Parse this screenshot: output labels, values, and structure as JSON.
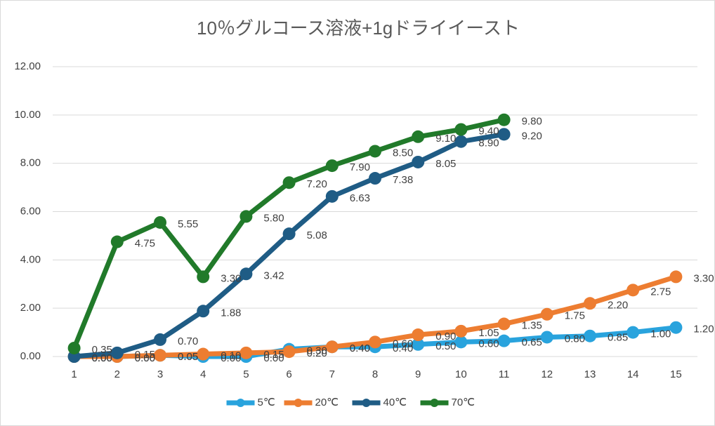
{
  "chart_data": {
    "type": "line",
    "title": "10％グルコース溶液+1gドライイースト",
    "categories": [
      "1",
      "2",
      "3",
      "4",
      "5",
      "6",
      "7",
      "8",
      "9",
      "10",
      "11",
      "12",
      "13",
      "14",
      "15"
    ],
    "series": [
      {
        "name": "5℃",
        "color": "#29a3dd",
        "values": [
          0,
          0,
          0.05,
          0,
          0,
          0.3,
          0.4,
          0.4,
          0.5,
          0.6,
          0.65,
          0.8,
          0.85,
          1,
          1.2
        ],
        "value_labels": [
          "0.00",
          "0.00",
          "0.05",
          "0.00",
          "0.00",
          "0.30",
          "0.40",
          "0.40",
          "0.50",
          "0.60",
          "0.65",
          "0.80",
          "0.85",
          "1.00",
          "1.20"
        ]
      },
      {
        "name": "20℃",
        "color": "#ed7d31",
        "values": [
          0,
          0,
          0.05,
          0.1,
          0.15,
          0.2,
          0.4,
          0.6,
          0.9,
          1.05,
          1.35,
          1.75,
          2.2,
          2.75,
          3.3
        ],
        "value_labels": [
          "0.00",
          "0.00",
          "0.05",
          "0.10",
          "0.15",
          "0.20",
          "0.40",
          "0.60",
          "0.90",
          "1.05",
          "1.35",
          "1.75",
          "2.20",
          "2.75",
          "3.30"
        ]
      },
      {
        "name": "40℃",
        "color": "#1f5c85",
        "values": [
          0,
          0.15,
          0.7,
          1.88,
          3.42,
          5.08,
          6.63,
          7.38,
          8.05,
          8.9,
          9.2,
          null,
          null,
          null,
          null
        ],
        "value_labels": [
          "0.00",
          "0.15",
          "0.70",
          "1.88",
          "3.42",
          "5.08",
          "6.63",
          "7.38",
          "8.05",
          "8.90",
          "9.20",
          null,
          null,
          null,
          null
        ]
      },
      {
        "name": "70℃",
        "color": "#217a2a",
        "values": [
          0.35,
          4.75,
          5.55,
          3.3,
          5.8,
          7.2,
          7.9,
          8.5,
          9.1,
          9.4,
          9.8,
          null,
          null,
          null,
          null
        ],
        "value_labels": [
          "0.35",
          "4.75",
          "5.55",
          "3.30",
          "5.80",
          "7.20",
          "7.90",
          "8.50",
          "9.10",
          "9.40",
          "9.80",
          null,
          null,
          null,
          null
        ]
      }
    ],
    "ylim": [
      0,
      12
    ],
    "yticks": [
      {
        "value": 0,
        "label": "0.00"
      },
      {
        "value": 2,
        "label": "2.00"
      },
      {
        "value": 4,
        "label": "4.00"
      },
      {
        "value": 6,
        "label": "6.00"
      },
      {
        "value": 8,
        "label": "8.00"
      },
      {
        "value": 10,
        "label": "10.00"
      },
      {
        "value": 12,
        "label": "12.00"
      }
    ],
    "grid": true,
    "legend": "bottom"
  }
}
